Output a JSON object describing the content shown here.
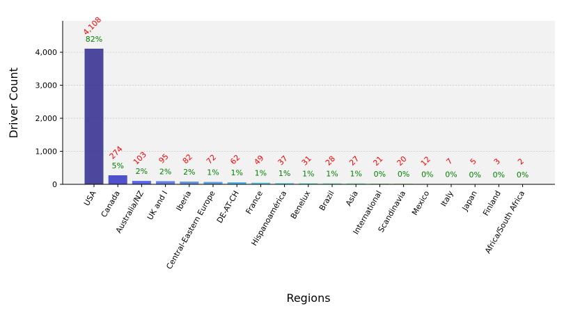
{
  "chart_data": {
    "type": "bar",
    "xlabel": "Regions",
    "ylabel": "Driver Count",
    "ylim": [
      0,
      4950
    ],
    "yticks": [
      0,
      1000,
      2000,
      3000,
      4000
    ],
    "ytick_labels": [
      "0",
      "1,000",
      "2,000",
      "3,000",
      "4,000"
    ],
    "grid": "horizontal dotted",
    "categories": [
      "USA",
      "Canada",
      "Australia/NZ",
      "UK and I",
      "Iberia",
      "Central-Eastern Europe",
      "DE-AT-CH",
      "France",
      "Hispanoamérica",
      "Benelux",
      "Brazil",
      "Asia",
      "International",
      "Scandinavia",
      "Mexico",
      "Italy",
      "Japan",
      "Finland",
      "Africa/South Africa"
    ],
    "values": [
      4108,
      274,
      103,
      95,
      82,
      72,
      62,
      49,
      37,
      31,
      28,
      27,
      21,
      20,
      12,
      7,
      5,
      3,
      2
    ],
    "value_labels": [
      "4,108",
      "274",
      "103",
      "95",
      "82",
      "72",
      "62",
      "49",
      "37",
      "31",
      "28",
      "27",
      "21",
      "20",
      "12",
      "7",
      "5",
      "3",
      "2"
    ],
    "percent_labels": [
      "82%",
      "5%",
      "2%",
      "2%",
      "2%",
      "1%",
      "1%",
      "1%",
      "1%",
      "1%",
      "1%",
      "1%",
      "0%",
      "0%",
      "0%",
      "0%",
      "0%",
      "0%",
      "0%"
    ],
    "colors": {
      "bars": [
        "#2e2a8f",
        "#3436c4",
        "#3f4ee0",
        "#4a6ae0",
        "#4a7fd8",
        "#3f8fdc",
        "#3aa6e0",
        "#3cbfe0",
        "#40d4d8",
        "#48dcc8",
        "#58e0b4",
        "#70e49c",
        "#8ce884",
        "#a8e470",
        "#c4dc5c",
        "#d8c850",
        "#e4a848",
        "#e07c40",
        "#d84838"
      ],
      "value_label": "#ff0000",
      "percent_label": "#008000",
      "plot_background": "#f2f2f2"
    }
  }
}
